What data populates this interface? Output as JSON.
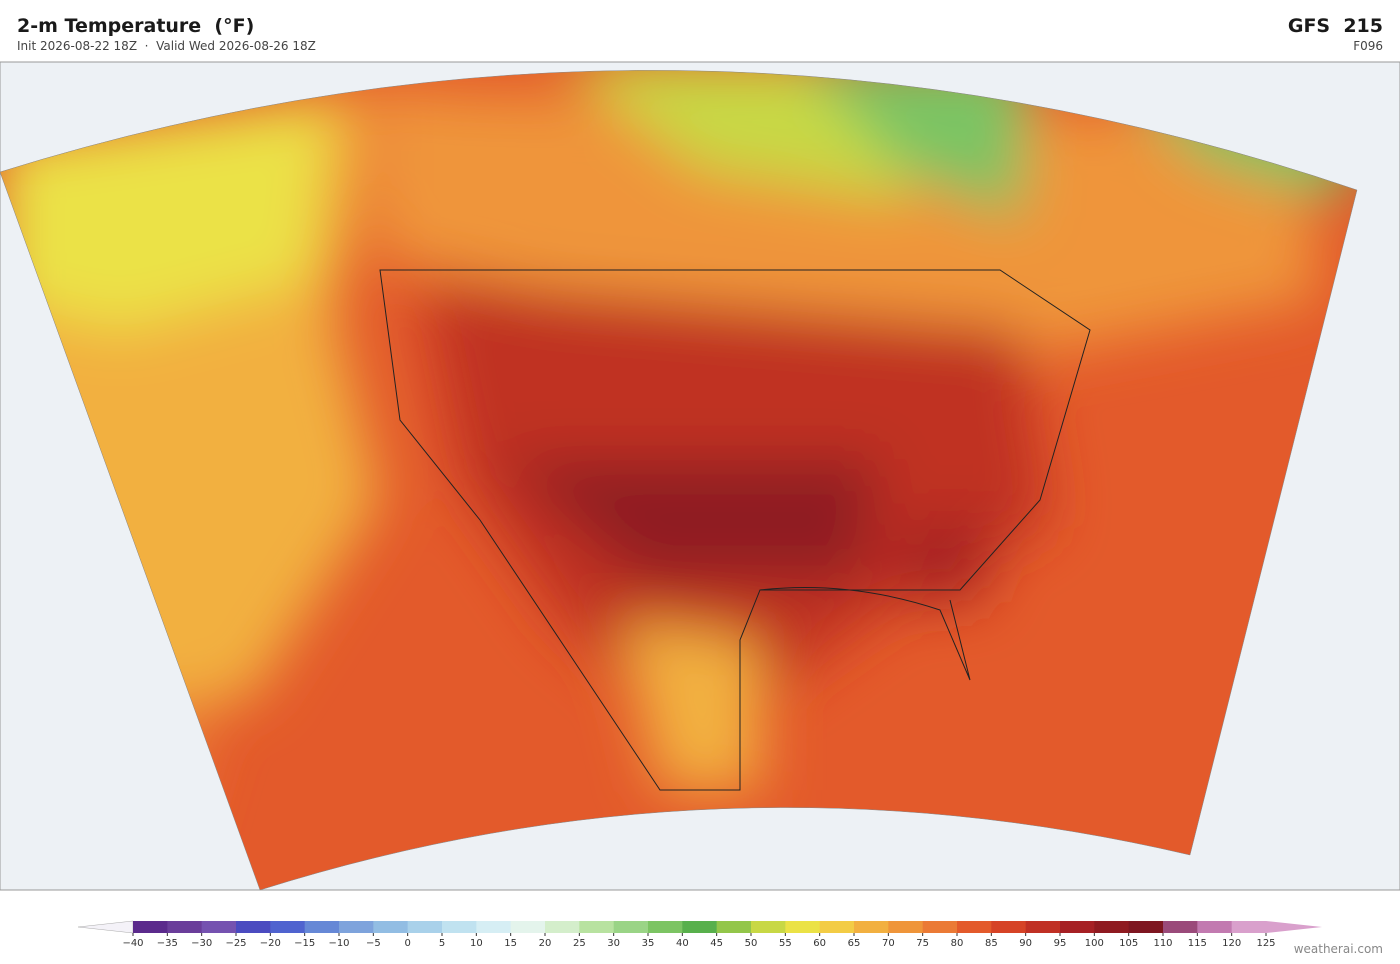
{
  "header": {
    "title": "2-m Temperature  (°F)",
    "subtitle": "Init 2026-08-22 18Z  ·  Valid Wed 2026-08-26 18Z",
    "model": "GFS  215",
    "forecast_hour": "F096"
  },
  "colorbar": {
    "ticks": [
      {
        "value": -40,
        "label": "−40"
      },
      {
        "value": -35,
        "label": "−35"
      },
      {
        "value": -30,
        "label": "−30"
      },
      {
        "value": -25,
        "label": "−25"
      },
      {
        "value": -20,
        "label": "−20"
      },
      {
        "value": -15,
        "label": "−15"
      },
      {
        "value": -10,
        "label": "−10"
      },
      {
        "value": -5,
        "label": "−5"
      },
      0,
      5,
      10,
      15,
      20,
      25,
      30,
      35,
      40,
      45,
      50,
      55,
      60,
      65,
      70,
      75,
      80,
      85,
      90,
      95,
      100,
      105,
      110,
      115,
      120,
      125
    ],
    "colors": [
      "#5b2a8c",
      "#6a3d9a",
      "#7552b0",
      "#4b4bc0",
      "#4f63cf",
      "#6688d6",
      "#7ea3dc",
      "#92bde3",
      "#a9d1ea",
      "#c0e2f0",
      "#d6eef4",
      "#e4f4ec",
      "#d4eecb",
      "#b8e2a0",
      "#9ad486",
      "#7cc463",
      "#58b04c",
      "#93c64a",
      "#c8d845",
      "#ebe246",
      "#f3cc45",
      "#f2b040",
      "#ef953a",
      "#eb7a35",
      "#e35a2b",
      "#d64326",
      "#c03024",
      "#a62024",
      "#8f1a20",
      "#7e1620",
      "#9a4a7a",
      "#c27ab0",
      "#d9a0cc"
    ],
    "extend_colors": [
      "#f4f2f8",
      "#d9a0cc"
    ]
  },
  "credit": "weatherai.com"
}
